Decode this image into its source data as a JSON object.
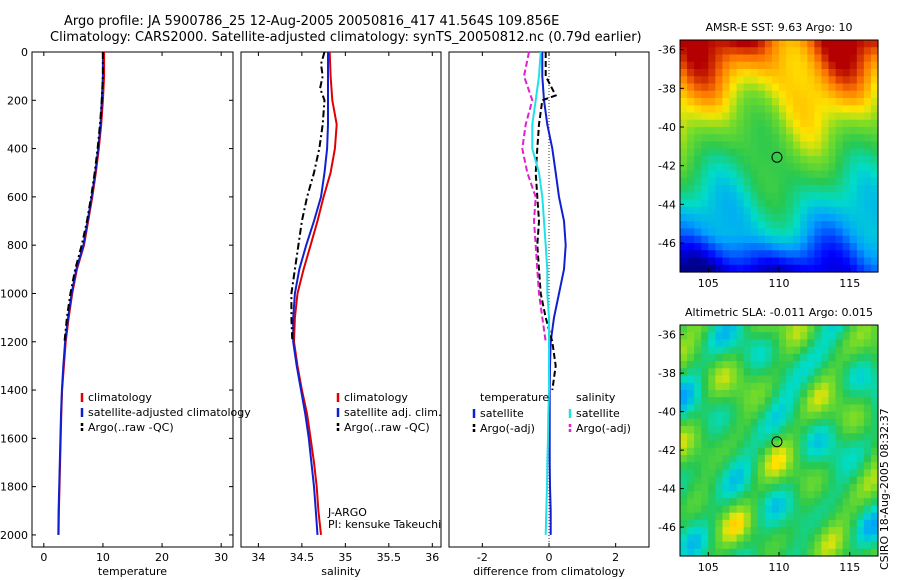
{
  "header": {
    "line1": "Argo profile: JA 5900786_25 12-Aug-2005 20050816_417 41.564S 109.856E",
    "line2": "Climatology: CARS2000. Satellite-adjusted climatology: synTS_20050812.nc (0.79d earlier)"
  },
  "side_label": "CSIRO 18-Aug-2005 08:32:37",
  "colors": {
    "climatology": "#e00000",
    "satellite": "#1020d0",
    "argo": "#000000",
    "satellite_salinity": "#20e0e8",
    "argo_salinity": "#e020d0"
  },
  "chart_data": [
    {
      "type": "line",
      "xlabel": "temperature",
      "ylabel": "",
      "xlim": [
        -2,
        32
      ],
      "ylim": [
        2050,
        0
      ],
      "xticks": [
        0,
        10,
        20,
        30
      ],
      "yticks": [
        0,
        200,
        400,
        600,
        800,
        1000,
        1200,
        1400,
        1600,
        1800,
        2000
      ],
      "legend": [
        "climatology",
        "satellite-adjusted climatology",
        "Argo(..raw -QC)"
      ],
      "series": [
        {
          "name": "climatology",
          "style": "solid",
          "color": "#e00000",
          "depth": [
            0,
            100,
            200,
            300,
            400,
            500,
            600,
            700,
            800,
            900,
            1000,
            1100,
            1200,
            1300,
            1400,
            1500,
            1600,
            1700,
            1800,
            1900,
            2000
          ],
          "values": [
            10.2,
            10.2,
            10.0,
            9.7,
            9.3,
            8.8,
            8.2,
            7.5,
            6.8,
            5.6,
            4.8,
            4.2,
            3.7,
            3.4,
            3.1,
            2.95,
            2.85,
            2.75,
            2.65,
            2.55,
            2.5
          ]
        },
        {
          "name": "satellite-adjusted climatology",
          "style": "solid",
          "color": "#1020d0",
          "depth": [
            0,
            100,
            200,
            300,
            400,
            500,
            600,
            700,
            800,
            900,
            1000,
            1100,
            1200,
            1300,
            1400,
            1500,
            1600,
            1700,
            1800,
            1900,
            2000
          ],
          "values": [
            10.0,
            10.0,
            9.8,
            9.6,
            9.2,
            8.7,
            8.1,
            7.4,
            6.7,
            5.5,
            4.7,
            4.1,
            3.6,
            3.3,
            3.05,
            2.9,
            2.8,
            2.7,
            2.6,
            2.5,
            2.45
          ]
        },
        {
          "name": "Argo(..raw -QC)",
          "style": "dashdot",
          "color": "#000000",
          "depth": [
            0,
            100,
            200,
            300,
            400,
            500,
            600,
            700,
            800,
            900,
            1000,
            1100,
            1200
          ],
          "values": [
            10.0,
            10.0,
            9.8,
            9.5,
            9.1,
            8.6,
            8.0,
            7.3,
            6.4,
            5.3,
            4.5,
            3.9,
            3.5
          ]
        }
      ]
    },
    {
      "type": "line",
      "xlabel": "salinity",
      "xlim": [
        33.8,
        36.1
      ],
      "ylim": [
        2050,
        0
      ],
      "xticks": [
        34,
        34.5,
        35,
        35.5,
        36
      ],
      "xticklabels": [
        "34",
        "34.5",
        "35",
        "35.5",
        "36"
      ],
      "legend": [
        "climatology",
        "satellite adj. clim.",
        "Argo(..raw -QC)"
      ],
      "annotation": [
        "J-ARGO",
        "PI: kensuke Takeuchi"
      ],
      "series": [
        {
          "name": "climatology",
          "style": "solid",
          "color": "#e00000",
          "depth": [
            0,
            100,
            200,
            300,
            400,
            500,
            600,
            700,
            800,
            900,
            1000,
            1100,
            1200,
            1300,
            1400,
            1500,
            1600,
            1700,
            1800,
            1900,
            2000
          ],
          "values": [
            34.82,
            34.83,
            34.85,
            34.9,
            34.88,
            34.83,
            34.75,
            34.68,
            34.6,
            34.52,
            34.45,
            34.42,
            34.41,
            34.45,
            34.5,
            34.56,
            34.6,
            34.64,
            34.67,
            34.69,
            34.72
          ]
        },
        {
          "name": "satellite adj. clim.",
          "style": "solid",
          "color": "#1020d0",
          "depth": [
            0,
            100,
            200,
            300,
            400,
            500,
            600,
            700,
            800,
            900,
            1000,
            1100,
            1200,
            1300,
            1400,
            1500,
            1600,
            1700,
            1800,
            1900,
            2000
          ],
          "values": [
            34.8,
            34.8,
            34.8,
            34.8,
            34.79,
            34.76,
            34.72,
            34.64,
            34.55,
            34.47,
            34.42,
            34.4,
            34.4,
            34.44,
            34.49,
            34.54,
            34.58,
            34.61,
            34.64,
            34.66,
            34.68
          ]
        },
        {
          "name": "Argo(..raw -QC)",
          "style": "dashdot",
          "color": "#000000",
          "depth": [
            0,
            50,
            100,
            150,
            200,
            300,
            400,
            500,
            600,
            700,
            800,
            900,
            1000,
            1100,
            1200
          ],
          "values": [
            34.76,
            34.72,
            34.74,
            34.71,
            34.76,
            34.74,
            34.7,
            34.64,
            34.56,
            34.5,
            34.46,
            34.42,
            34.38,
            34.38,
            34.39
          ]
        }
      ]
    },
    {
      "type": "line",
      "xlabel": "difference from climatology",
      "xlim": [
        -3,
        3
      ],
      "ylim": [
        2050,
        0
      ],
      "xticks": [
        -2,
        0,
        2
      ],
      "legend_groups": [
        {
          "title": "temperature",
          "items": [
            "satellite",
            "Argo(-adj)"
          ]
        },
        {
          "title": "salinity",
          "items": [
            "satellite",
            "Argo(-adj)"
          ]
        }
      ],
      "series": [
        {
          "name": "temperature satellite",
          "style": "solid",
          "color": "#1020d0",
          "depth": [
            0,
            100,
            200,
            300,
            400,
            500,
            600,
            700,
            800,
            900,
            1000,
            1100,
            1200,
            1300,
            1400,
            1500,
            1600,
            1700,
            1800,
            1900,
            2000
          ],
          "values": [
            -0.2,
            -0.2,
            -0.15,
            -0.05,
            0.1,
            0.2,
            0.3,
            0.45,
            0.5,
            0.45,
            0.3,
            0.15,
            0.05,
            0.03,
            0.02,
            0.02,
            0.02,
            0.02,
            0.03,
            0.05,
            0.05
          ]
        },
        {
          "name": "temperature Argo(-adj)",
          "style": "dashed",
          "color": "#000000",
          "depth": [
            0,
            100,
            180,
            200,
            300,
            400,
            500,
            600,
            700,
            800,
            900,
            1000,
            1100,
            1200,
            1300,
            1400
          ],
          "values": [
            -0.1,
            -0.1,
            0.2,
            -0.2,
            -0.3,
            -0.35,
            -0.4,
            -0.35,
            -0.3,
            -0.35,
            -0.3,
            -0.25,
            -0.1,
            0.1,
            0.2,
            0.1
          ]
        },
        {
          "name": "salinity satellite",
          "style": "solid",
          "color": "#20e0e8",
          "depth": [
            0,
            100,
            200,
            300,
            400,
            500,
            600,
            700,
            800,
            900,
            1000,
            1100,
            1200,
            1300,
            1400,
            1500,
            1600,
            1700,
            1800,
            1900,
            2000
          ],
          "values": [
            -0.25,
            -0.3,
            -0.4,
            -0.5,
            -0.5,
            -0.3,
            -0.2,
            -0.15,
            -0.1,
            -0.05,
            -0.05,
            0.0,
            0.0,
            0.0,
            0.0,
            -0.02,
            -0.03,
            -0.05,
            -0.06,
            -0.08,
            -0.1
          ]
        },
        {
          "name": "salinity Argo(-adj)",
          "style": "dashed",
          "color": "#e020d0",
          "depth": [
            0,
            100,
            200,
            300,
            400,
            500,
            600,
            700,
            800,
            900,
            1000,
            1100,
            1200
          ],
          "values": [
            -0.6,
            -0.75,
            -0.5,
            -0.7,
            -0.8,
            -0.65,
            -0.4,
            -0.45,
            -0.4,
            -0.35,
            -0.3,
            -0.2,
            -0.1
          ]
        }
      ]
    },
    {
      "type": "heatmap",
      "title": "AMSR-E SST: 9.63  Argo: 10",
      "xlim": [
        103,
        117
      ],
      "ylim": [
        -47.5,
        -35.5
      ],
      "xticks": [
        105,
        110,
        115
      ],
      "yticks": [
        -36,
        -38,
        -40,
        -42,
        -44,
        -46
      ],
      "marker": {
        "lon": 109.856,
        "lat": -41.564
      }
    },
    {
      "type": "heatmap",
      "title": "Altimetric SLA: -0.011  Argo: 0.015",
      "xlim": [
        103,
        117
      ],
      "ylim": [
        -47.5,
        -35.5
      ],
      "xticks": [
        105,
        110,
        115
      ],
      "yticks": [
        -36,
        -38,
        -40,
        -42,
        -44,
        -46
      ],
      "marker": {
        "lon": 109.856,
        "lat": -41.564
      }
    }
  ]
}
